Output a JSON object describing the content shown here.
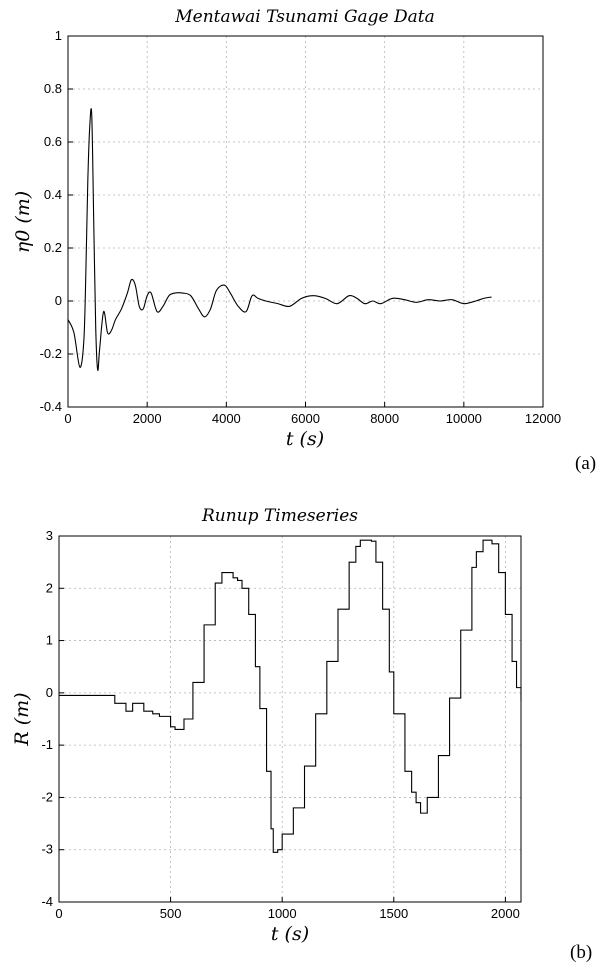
{
  "panels": {
    "a_label": "(a)",
    "b_label": "(b)"
  },
  "chart_data": [
    {
      "type": "line",
      "title": "Mentawai Tsunami Gage Data",
      "xlabel": "t (s)",
      "ylabel": "η0 (m)",
      "xlim": [
        0,
        12000
      ],
      "ylim": [
        -0.4,
        1
      ],
      "xticks": [
        0,
        2000,
        4000,
        6000,
        8000,
        10000,
        12000
      ],
      "yticks": [
        -0.4,
        -0.2,
        0,
        0.2,
        0.4,
        0.6,
        0.8,
        1
      ],
      "grid": true,
      "x": [
        0,
        150,
        300,
        400,
        450,
        500,
        550,
        600,
        650,
        700,
        750,
        800,
        900,
        1000,
        1100,
        1200,
        1350,
        1500,
        1600,
        1700,
        1800,
        1900,
        2000,
        2100,
        2250,
        2400,
        2550,
        2700,
        2900,
        3100,
        3300,
        3450,
        3600,
        3750,
        3950,
        4100,
        4300,
        4500,
        4650,
        4800,
        5000,
        5300,
        5600,
        5900,
        6200,
        6500,
        6800,
        7100,
        7300,
        7500,
        7700,
        7900,
        8200,
        8500,
        8800,
        9100,
        9400,
        9700,
        10000,
        10300,
        10500,
        10700
      ],
      "y": [
        -0.07,
        -0.12,
        -0.25,
        -0.15,
        0.1,
        0.45,
        0.66,
        0.7,
        0.3,
        -0.1,
        -0.26,
        -0.18,
        -0.04,
        -0.12,
        -0.11,
        -0.07,
        -0.03,
        0.03,
        0.08,
        0.06,
        -0.02,
        -0.03,
        0.02,
        0.03,
        -0.04,
        -0.02,
        0.02,
        0.03,
        0.03,
        0.02,
        -0.03,
        -0.06,
        -0.03,
        0.04,
        0.06,
        0.03,
        -0.02,
        -0.04,
        0.02,
        0.01,
        0.0,
        -0.01,
        -0.02,
        0.01,
        0.02,
        0.01,
        -0.01,
        0.02,
        0.01,
        -0.01,
        0.0,
        -0.01,
        0.01,
        0.005,
        -0.005,
        0.005,
        0.0,
        0.005,
        -0.01,
        0.0,
        0.01,
        0.015
      ]
    },
    {
      "type": "line",
      "step": true,
      "title": "Runup Timeseries",
      "xlabel": "t (s)",
      "ylabel": "R (m)",
      "xlim": [
        0,
        2070
      ],
      "ylim": [
        -4,
        3
      ],
      "xticks": [
        0,
        500,
        1000,
        1500,
        2000
      ],
      "yticks": [
        -4,
        -3,
        -2,
        -1,
        0,
        1,
        2,
        3
      ],
      "grid": true,
      "x": [
        0,
        250,
        300,
        330,
        380,
        420,
        450,
        500,
        520,
        560,
        600,
        650,
        700,
        730,
        750,
        780,
        800,
        820,
        850,
        880,
        900,
        930,
        950,
        960,
        980,
        1000,
        1050,
        1100,
        1150,
        1200,
        1250,
        1300,
        1330,
        1350,
        1380,
        1400,
        1420,
        1450,
        1480,
        1500,
        1550,
        1580,
        1600,
        1620,
        1650,
        1700,
        1750,
        1800,
        1850,
        1870,
        1900,
        1920,
        1940,
        1970,
        2000,
        2030,
        2050,
        2070
      ],
      "y": [
        -0.05,
        -0.2,
        -0.35,
        -0.2,
        -0.35,
        -0.4,
        -0.45,
        -0.65,
        -0.7,
        -0.5,
        0.2,
        1.3,
        2.1,
        2.3,
        2.3,
        2.2,
        2.15,
        2.0,
        1.5,
        0.5,
        -0.3,
        -1.5,
        -2.6,
        -3.05,
        -3.0,
        -2.7,
        -2.2,
        -1.4,
        -0.4,
        0.6,
        1.6,
        2.5,
        2.8,
        2.92,
        2.92,
        2.9,
        2.5,
        1.6,
        0.4,
        -0.4,
        -1.5,
        -1.9,
        -2.1,
        -2.3,
        -2.0,
        -1.2,
        -0.1,
        1.2,
        2.4,
        2.7,
        2.92,
        2.92,
        2.85,
        2.3,
        1.5,
        0.6,
        0.1,
        -0.15
      ]
    }
  ]
}
